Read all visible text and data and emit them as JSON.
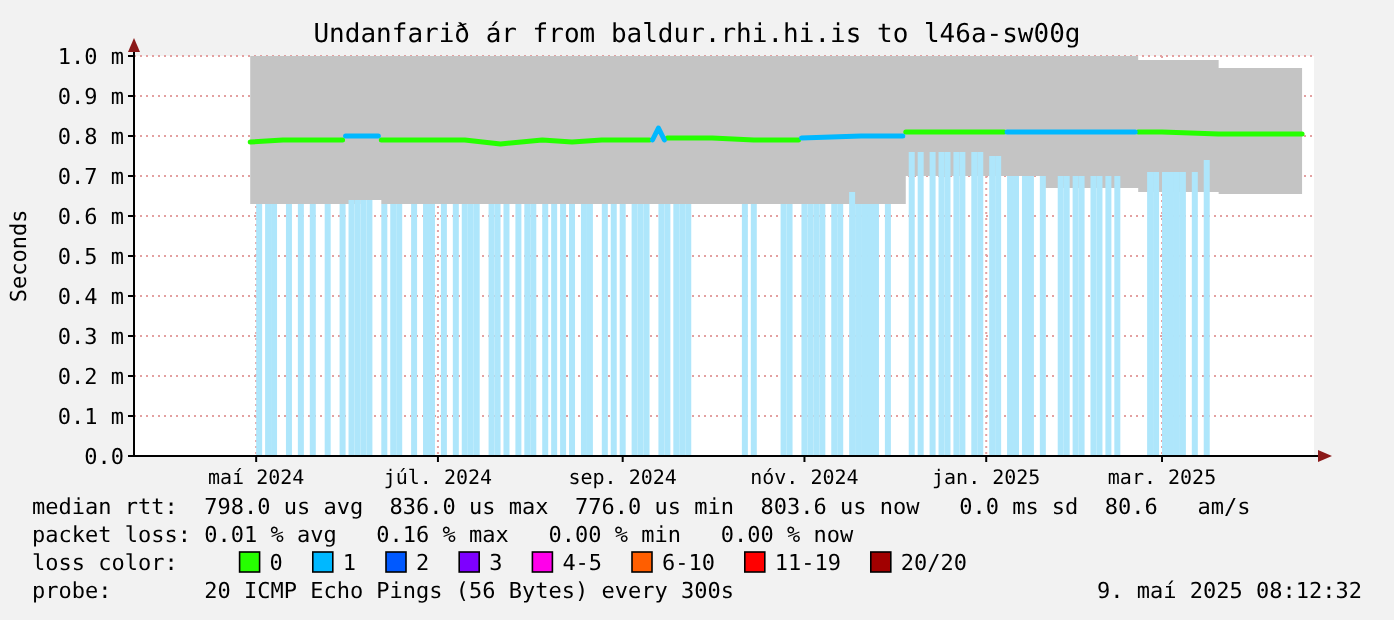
{
  "chart_data": {
    "type": "line",
    "title": "Undanfarið ár from baldur.rhi.hi.is to l46a-sw00g",
    "ylabel": "Seconds",
    "legend_title": "loss color:",
    "legend": "bottom",
    "grid": true,
    "xlim": [
      "2024-03-21",
      "2025-04-21"
    ],
    "xticks": [
      {
        "value": "2024-05-01",
        "label": "maí 2024"
      },
      {
        "value": "2024-07-01",
        "label": "júl. 2024"
      },
      {
        "value": "2024-09-01",
        "label": "sep. 2024"
      },
      {
        "value": "2024-11-01",
        "label": "nóv. 2024"
      },
      {
        "value": "2025-01-01",
        "label": "jan. 2025"
      },
      {
        "value": "2025-03-01",
        "label": "mar. 2025"
      }
    ],
    "ylim": [
      0,
      1
    ],
    "yticks": [
      {
        "value": 0,
        "label": "0.0"
      },
      {
        "value": 0.1,
        "label": "0.1 m"
      },
      {
        "value": 0.2,
        "label": "0.2 m"
      },
      {
        "value": 0.3,
        "label": "0.3 m"
      },
      {
        "value": 0.4,
        "label": "0.4 m"
      },
      {
        "value": 0.5,
        "label": "0.5 m"
      },
      {
        "value": 0.6,
        "label": "0.6 m"
      },
      {
        "value": 0.7,
        "label": "0.7 m"
      },
      {
        "value": 0.8,
        "label": "0.8 m"
      },
      {
        "value": 0.9,
        "label": "0.9 m"
      },
      {
        "value": 1,
        "label": "1.0 m"
      }
    ],
    "series": [
      {
        "type": "bar",
        "color": "#aee6fb",
        "x": [
          "2024-05-02",
          "2024-05-05",
          "2024-05-07",
          "2024-05-12",
          "2024-05-16",
          "2024-05-20",
          "2024-05-25",
          "2024-05-30",
          "2024-06-02",
          "2024-06-04",
          "2024-06-06",
          "2024-06-08",
          "2024-06-13",
          "2024-06-16",
          "2024-06-18",
          "2024-06-23",
          "2024-06-27",
          "2024-06-29",
          "2024-07-03",
          "2024-07-07",
          "2024-07-10",
          "2024-07-12",
          "2024-07-14",
          "2024-07-19",
          "2024-07-21",
          "2024-07-24",
          "2024-07-28",
          "2024-07-31",
          "2024-08-02",
          "2024-08-06",
          "2024-08-09",
          "2024-08-12",
          "2024-08-15",
          "2024-08-19",
          "2024-08-21",
          "2024-08-26",
          "2024-08-29",
          "2024-09-01",
          "2024-09-05",
          "2024-09-07",
          "2024-09-09",
          "2024-09-14",
          "2024-09-16",
          "2024-09-19",
          "2024-09-21",
          "2024-09-23",
          "2024-10-12",
          "2024-10-15",
          "2024-10-25",
          "2024-10-27",
          "2024-11-01",
          "2024-11-03",
          "2024-11-05",
          "2024-11-07",
          "2024-11-11",
          "2024-11-13",
          "2024-11-17",
          "2024-11-19",
          "2024-11-21",
          "2024-11-23",
          "2024-11-25",
          "2024-11-29",
          "2024-12-07",
          "2024-12-10",
          "2024-12-14",
          "2024-12-17",
          "2024-12-19",
          "2024-12-22",
          "2024-12-24",
          "2024-12-28",
          "2024-12-30",
          "2025-01-03",
          "2025-01-05",
          "2025-01-09",
          "2025-01-11",
          "2025-01-14",
          "2025-01-16",
          "2025-01-20",
          "2025-01-26",
          "2025-01-28",
          "2025-01-31",
          "2025-02-02",
          "2025-02-06",
          "2025-02-08",
          "2025-02-11",
          "2025-02-14",
          "2025-02-25",
          "2025-02-27",
          "2025-03-02",
          "2025-03-04",
          "2025-03-06",
          "2025-03-08",
          "2025-03-12",
          "2025-03-16"
        ],
        "values": [
          0.63,
          0.63,
          0.63,
          0.63,
          0.63,
          0.63,
          0.63,
          0.63,
          0.64,
          0.64,
          0.64,
          0.64,
          0.63,
          0.63,
          0.63,
          0.63,
          0.63,
          0.63,
          0.63,
          0.63,
          0.63,
          0.63,
          0.63,
          0.63,
          0.63,
          0.63,
          0.63,
          0.63,
          0.63,
          0.63,
          0.63,
          0.63,
          0.63,
          0.63,
          0.63,
          0.63,
          0.63,
          0.63,
          0.63,
          0.63,
          0.63,
          0.63,
          0.63,
          0.63,
          0.63,
          0.63,
          0.63,
          0.63,
          0.63,
          0.63,
          0.63,
          0.63,
          0.63,
          0.63,
          0.63,
          0.63,
          0.66,
          0.63,
          0.63,
          0.63,
          0.63,
          0.63,
          0.76,
          0.76,
          0.76,
          0.76,
          0.76,
          0.76,
          0.76,
          0.76,
          0.76,
          0.75,
          0.75,
          0.7,
          0.7,
          0.7,
          0.7,
          0.7,
          0.7,
          0.7,
          0.7,
          0.7,
          0.7,
          0.7,
          0.7,
          0.7,
          0.71,
          0.71,
          0.71,
          0.71,
          0.71,
          0.71,
          0.71,
          0.74
        ]
      },
      {
        "name": "0",
        "color": "#26ff00",
        "x": [
          "2024-04-29",
          "2024-05-10",
          "2024-05-20",
          "2024-05-30",
          "2024-06-05",
          "2024-06-12",
          "2024-06-25",
          "2024-07-10",
          "2024-07-22",
          "2024-08-05",
          "2024-08-15",
          "2024-08-25",
          "2024-09-10",
          "2024-09-12",
          "2024-09-16",
          "2024-10-01",
          "2024-10-15",
          "2024-10-30",
          "2024-11-10",
          "2024-12-05",
          "2025-01-07",
          "2025-01-20",
          "2025-02-21",
          "2025-03-01",
          "2025-03-20",
          "2025-04-01",
          "2025-04-17"
        ],
        "values": [
          0.785,
          0.79,
          0.79,
          0.79,
          null,
          0.79,
          0.79,
          0.79,
          0.78,
          0.79,
          0.785,
          0.79,
          0.79,
          null,
          0.795,
          0.795,
          0.79,
          0.79,
          null,
          0.81,
          0.81,
          null,
          0.81,
          0.81,
          0.805,
          0.805,
          0.805
        ],
        "lower": [
          0.63,
          0.63,
          0.63,
          0.63,
          0.64,
          0.63,
          0.63,
          0.63,
          0.63,
          0.63,
          0.63,
          0.63,
          0.63,
          0.63,
          0.63,
          0.63,
          0.63,
          0.63,
          0.63,
          0.7,
          0.7,
          0.67,
          0.66,
          0.66,
          0.655,
          0.655,
          0.65
        ],
        "upper": [
          1,
          1,
          1,
          1,
          1,
          1,
          1,
          1,
          1,
          1,
          1,
          1,
          1,
          1,
          1,
          1,
          1,
          1,
          1,
          1,
          1,
          1,
          0.99,
          0.99,
          0.97,
          0.97,
          0.96
        ]
      },
      {
        "name": "1",
        "color": "#00b8ff",
        "x": [
          "2024-05-31",
          "2024-06-11",
          "2024-07-01",
          "2024-09-11",
          "2024-09-13",
          "2024-09-15",
          "2024-10-15",
          "2024-10-31",
          "2024-11-20",
          "2024-12-04",
          "2024-12-20",
          "2025-01-08",
          "2025-02-20"
        ],
        "values": [
          0.8,
          0.8,
          null,
          0.79,
          0.82,
          0.79,
          null,
          0.795,
          0.8,
          0.8,
          null,
          0.81,
          0.81
        ]
      },
      {
        "name": "2",
        "color": "#0059ff"
      },
      {
        "name": "3",
        "color": "#7e00ff"
      },
      {
        "name": "4-5",
        "color": "#ff00ea"
      },
      {
        "name": "6-10",
        "color": "#ff5e00"
      },
      {
        "name": "11-19",
        "color": "#ff0000"
      },
      {
        "name": "20/20",
        "color": "#a10000"
      }
    ],
    "annotations": [
      "median rtt:  798.0 us avg  836.0 us max  776.0 us min  803.6 us now   0.0 ms sd  80.6   am/s",
      "packet loss: 0.01 % avg   0.16 % max   0.00 % min   0.00 % now",
      "probe:       20 ICMP Echo Pings (56 Bytes) every 300s",
      "9. maí 2025 08:12:32"
    ]
  }
}
